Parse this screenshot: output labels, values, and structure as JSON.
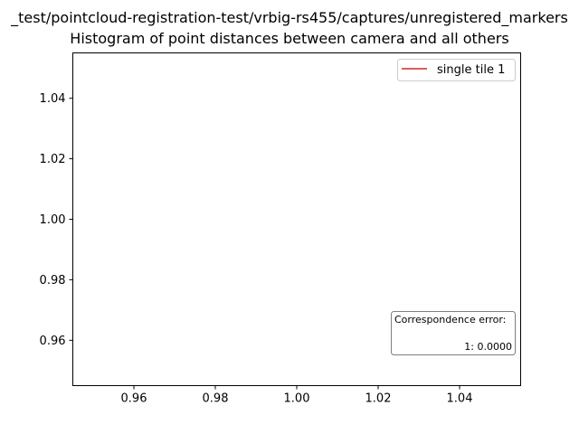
{
  "chart_data": {
    "type": "line",
    "title": "_test/pointcloud-registration-test/vrbig-rs455/captures/unregistered_markers",
    "subtitle": "Histogram of point distances between camera and all others",
    "xlabel": "",
    "ylabel": "",
    "xlim": [
      0.945,
      1.055
    ],
    "ylim": [
      0.945,
      1.055
    ],
    "x_ticks": [
      "0.96",
      "0.98",
      "1.00",
      "1.02",
      "1.04"
    ],
    "y_ticks": [
      "0.96",
      "0.98",
      "1.00",
      "1.02",
      "1.04"
    ],
    "series": [
      {
        "name": "single tile 1",
        "color": "#d62728",
        "x": [],
        "y": []
      }
    ],
    "legend_position": "top-right",
    "grid": false,
    "annotation": {
      "title": "Correspondence error:",
      "lines": [
        "1: 0.0000"
      ],
      "position": "bottom-right"
    }
  }
}
